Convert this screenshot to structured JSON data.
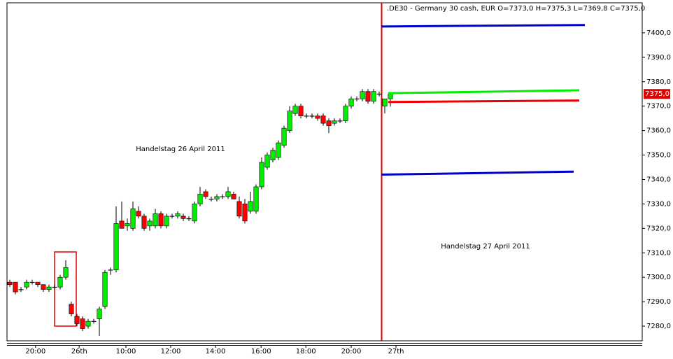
{
  "chart_data": {
    "type": "candlestick",
    "title": ".DE30 - Germany 30 cash, EUR O=7373,0 H=7375,3 L=7369,8 C=7375,0",
    "annotations": [
      "Handelstag 26 April 2011",
      "Handelstag 27 April 2011"
    ],
    "open": [
      7298,
      7298,
      7295,
      7296,
      7298,
      7298,
      7297,
      7295,
      7296,
      7296,
      7300,
      7289,
      7284,
      7283,
      7280,
      7282,
      7283,
      7288,
      7303,
      7303,
      7323,
      7321,
      7320,
      7327,
      7325,
      7321,
      7321,
      7326,
      7321,
      7325,
      7325,
      7325,
      7324,
      7323,
      7330,
      7335,
      7332,
      7332,
      7333,
      7333,
      7334,
      7331,
      7330,
      7327,
      7327,
      7337,
      7345,
      7348,
      7349,
      7354,
      7360,
      7367,
      7370,
      7366,
      7366,
      7366,
      7366,
      7364,
      7363,
      7364,
      7364,
      7370,
      7373,
      7373,
      7376,
      7372,
      7375,
      7370,
      7373
    ],
    "high": [
      7299,
      7298,
      7296,
      7299,
      7299,
      7298,
      7297,
      7297,
      7297,
      7301,
      7307,
      7290,
      7285,
      7284,
      7283,
      7283,
      7288,
      7303,
      7304,
      7329,
      7331,
      7324,
      7331,
      7329,
      7326,
      7324,
      7328,
      7327,
      7326,
      7326,
      7327,
      7326,
      7325,
      7331,
      7337,
      7336,
      7333,
      7334,
      7334,
      7337,
      7335,
      7333,
      7332,
      7335,
      7338,
      7349,
      7351,
      7353,
      7356,
      7362,
      7370,
      7371,
      7371,
      7367,
      7367,
      7367,
      7367,
      7365,
      7365,
      7365,
      7371,
      7374,
      7374,
      7377,
      7377,
      7377,
      7376,
      7373,
      7375.3
    ],
    "low": [
      7296,
      7293,
      7294,
      7295,
      7297,
      7296,
      7294,
      7294,
      7295,
      7295,
      7299,
      7284,
      7280,
      7278,
      7279,
      7281,
      7276,
      7287,
      7301,
      7302,
      7320,
      7319,
      7319,
      7324,
      7319,
      7319,
      7320,
      7320,
      7320,
      7324,
      7324,
      7323,
      7323,
      7322,
      7329,
      7332,
      7331,
      7331,
      7332,
      7332,
      7332,
      7324,
      7322,
      7326,
      7326,
      7336,
      7344,
      7347,
      7348,
      7353,
      7359,
      7366,
      7365,
      7365,
      7365,
      7364,
      7362,
      7359,
      7362,
      7363,
      7363,
      7369,
      7372,
      7372,
      7371,
      7371,
      7374,
      7367,
      7369.8
    ],
    "close": [
      7297,
      7294,
      7295,
      7298,
      7298,
      7297,
      7295,
      7296,
      7296,
      7300,
      7304,
      7285,
      7281,
      7279,
      7282,
      7282,
      7287,
      7302,
      7303,
      7322,
      7320,
      7322,
      7328,
      7325,
      7320,
      7323,
      7326,
      7321,
      7325,
      7325,
      7326,
      7324,
      7324,
      7330,
      7334,
      7333,
      7332,
      7333,
      7333,
      7335,
      7332,
      7325,
      7323,
      7331,
      7337,
      7347,
      7350,
      7352,
      7355,
      7361,
      7368,
      7370,
      7366,
      7366,
      7366,
      7365,
      7363,
      7362,
      7364,
      7364,
      7370,
      7373,
      7373,
      7376,
      7372,
      7376,
      7375,
      7373,
      7375
    ],
    "up_color": "#00ee00",
    "down_color": "#ff0000",
    "levels": [
      {
        "color": "#0000cc",
        "x": [
          66.4,
          102.75
        ],
        "values": [
          7402.6,
          7403.2
        ]
      },
      {
        "color": "#00ee00",
        "x": [
          67.6,
          101.75
        ],
        "values": [
          7375.3,
          7376.5
        ]
      },
      {
        "color": "#ee0000",
        "x": [
          67.6,
          101.75
        ],
        "values": [
          7371.7,
          7372.3
        ]
      },
      {
        "color": "#0000cc",
        "x": [
          66.4,
          100.75
        ],
        "values": [
          7342.0,
          7343.2
        ]
      }
    ],
    "last_price": {
      "value": 7375,
      "label": "7375,0"
    },
    "xlim": [
      -0.5,
      113
    ],
    "xticks": [
      {
        "value": 4.6,
        "label": "20:00"
      },
      {
        "value": 12.4,
        "label": "26th"
      },
      {
        "value": 20.75,
        "label": "10:00"
      },
      {
        "value": 28.75,
        "label": "12:00"
      },
      {
        "value": 36.75,
        "label": "14:00"
      },
      {
        "value": 44.9,
        "label": "16:00"
      },
      {
        "value": 52.9,
        "label": "18:00"
      },
      {
        "value": 61,
        "label": "20:00"
      },
      {
        "value": 69,
        "label": "27th"
      }
    ],
    "ylim": [
      7274,
      7412
    ],
    "yticks": [
      {
        "value": 7280,
        "label": "7280,0"
      },
      {
        "value": 7290,
        "label": "7290,0"
      },
      {
        "value": 7300,
        "label": "7300,0"
      },
      {
        "value": 7310,
        "label": "7310,0"
      },
      {
        "value": 7320,
        "label": "7320,0"
      },
      {
        "value": 7330,
        "label": "7330,0"
      },
      {
        "value": 7340,
        "label": "7340,0"
      },
      {
        "value": 7350,
        "label": "7350,0"
      },
      {
        "value": 7360,
        "label": "7360,0"
      },
      {
        "value": 7370,
        "label": "7370,0"
      },
      {
        "value": 7380,
        "label": "7380,0"
      },
      {
        "value": 7390,
        "label": "7390,0"
      },
      {
        "value": 7400,
        "label": "7400,0"
      }
    ]
  }
}
